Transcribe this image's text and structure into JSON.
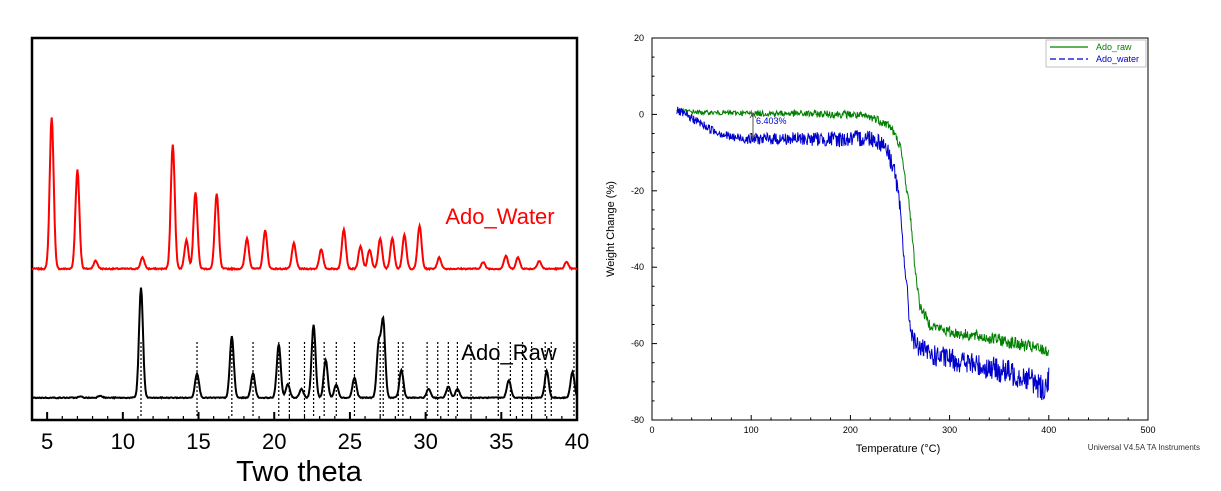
{
  "chart_data": [
    {
      "type": "line",
      "title": "",
      "xlabel": "Two theta",
      "ylabel": "",
      "xlim": [
        4,
        40
      ],
      "x_ticks": [
        5,
        10,
        15,
        20,
        25,
        30,
        35,
        40
      ],
      "y_ticks_shown": false,
      "grid": false,
      "series": [
        {
          "name": "Ado_Water",
          "color": "#ff0000",
          "baseline": 0.02,
          "peaks": [
            {
              "x": 5.3,
              "h": 0.95
            },
            {
              "x": 7.0,
              "h": 0.62
            },
            {
              "x": 8.2,
              "h": 0.05
            },
            {
              "x": 11.3,
              "h": 0.07
            },
            {
              "x": 13.3,
              "h": 0.78
            },
            {
              "x": 14.2,
              "h": 0.18
            },
            {
              "x": 14.8,
              "h": 0.48
            },
            {
              "x": 16.2,
              "h": 0.47
            },
            {
              "x": 18.2,
              "h": 0.19
            },
            {
              "x": 19.4,
              "h": 0.24
            },
            {
              "x": 21.3,
              "h": 0.16
            },
            {
              "x": 23.1,
              "h": 0.12
            },
            {
              "x": 24.6,
              "h": 0.25
            },
            {
              "x": 25.7,
              "h": 0.14
            },
            {
              "x": 26.3,
              "h": 0.12
            },
            {
              "x": 27.0,
              "h": 0.19
            },
            {
              "x": 27.8,
              "h": 0.19
            },
            {
              "x": 28.6,
              "h": 0.21
            },
            {
              "x": 29.6,
              "h": 0.27
            },
            {
              "x": 30.9,
              "h": 0.07
            },
            {
              "x": 33.8,
              "h": 0.04
            },
            {
              "x": 35.3,
              "h": 0.08
            },
            {
              "x": 36.1,
              "h": 0.07
            },
            {
              "x": 37.5,
              "h": 0.05
            },
            {
              "x": 39.3,
              "h": 0.04
            }
          ]
        },
        {
          "name": "Ado_Raw",
          "color": "#000000",
          "baseline": 0.02,
          "peaks": [
            {
              "x": 7.2,
              "h": 0.01
            },
            {
              "x": 8.5,
              "h": 0.02
            },
            {
              "x": 11.2,
              "h": 0.98
            },
            {
              "x": 14.9,
              "h": 0.22
            },
            {
              "x": 17.2,
              "h": 0.55
            },
            {
              "x": 18.6,
              "h": 0.22
            },
            {
              "x": 20.3,
              "h": 0.48
            },
            {
              "x": 20.9,
              "h": 0.12
            },
            {
              "x": 21.8,
              "h": 0.08
            },
            {
              "x": 22.6,
              "h": 0.65
            },
            {
              "x": 23.4,
              "h": 0.34
            },
            {
              "x": 24.1,
              "h": 0.12
            },
            {
              "x": 25.3,
              "h": 0.18
            },
            {
              "x": 26.9,
              "h": 0.47
            },
            {
              "x": 27.2,
              "h": 0.68
            },
            {
              "x": 28.4,
              "h": 0.25
            },
            {
              "x": 30.2,
              "h": 0.08
            },
            {
              "x": 31.5,
              "h": 0.1
            },
            {
              "x": 32.1,
              "h": 0.08
            },
            {
              "x": 35.5,
              "h": 0.16
            },
            {
              "x": 38.0,
              "h": 0.24
            },
            {
              "x": 39.7,
              "h": 0.23
            }
          ],
          "reference_lines": [
            11.2,
            14.9,
            17.2,
            18.6,
            20.3,
            21.0,
            22.0,
            22.6,
            23.3,
            24.1,
            25.3,
            27.0,
            27.2,
            28.2,
            28.5,
            30.1,
            30.8,
            31.5,
            32.1,
            33.0,
            34.8,
            35.6,
            36.4,
            37.0,
            37.9,
            38.3,
            39.8
          ]
        }
      ],
      "labels": [
        "Ado_Water",
        "Ado_Raw"
      ]
    },
    {
      "type": "line",
      "title": "",
      "xlabel": "Temperature (°C)",
      "ylabel": "Weight Change (%)",
      "xlim": [
        0,
        500
      ],
      "ylim": [
        -80,
        20
      ],
      "x_ticks": [
        0,
        100,
        200,
        300,
        400,
        500
      ],
      "y_ticks": [
        20,
        0,
        -20,
        -40,
        -60,
        -80
      ],
      "grid": false,
      "legend_position": "top-right",
      "annotation": "6.403%",
      "footer_text": "Universal V4.5A TA Instruments",
      "series": [
        {
          "name": "Ado_raw",
          "color": "#008000",
          "style": "solid",
          "points": [
            [
              25,
              1
            ],
            [
              50,
              0.5
            ],
            [
              100,
              0.3
            ],
            [
              150,
              0.2
            ],
            [
              200,
              0
            ],
            [
              225,
              -1
            ],
            [
              240,
              -3
            ],
            [
              250,
              -8
            ],
            [
              260,
              -25
            ],
            [
              265,
              -40
            ],
            [
              270,
              -50
            ],
            [
              280,
              -55
            ],
            [
              300,
              -57
            ],
            [
              350,
              -59
            ],
            [
              400,
              -62
            ]
          ]
        },
        {
          "name": "Ado_water",
          "color": "#0000cc",
          "style": "dashed",
          "points": [
            [
              25,
              1
            ],
            [
              40,
              -1
            ],
            [
              60,
              -4
            ],
            [
              80,
              -6
            ],
            [
              100,
              -6.4
            ],
            [
              150,
              -6.4
            ],
            [
              200,
              -6.5
            ],
            [
              220,
              -6
            ],
            [
              235,
              -8
            ],
            [
              245,
              -15
            ],
            [
              250,
              -25
            ],
            [
              255,
              -40
            ],
            [
              260,
              -55
            ],
            [
              265,
              -60
            ],
            [
              280,
              -63
            ],
            [
              300,
              -64
            ],
            [
              350,
              -67
            ],
            [
              380,
              -69
            ],
            [
              395,
              -72
            ],
            [
              400,
              -69
            ]
          ]
        }
      ]
    }
  ]
}
